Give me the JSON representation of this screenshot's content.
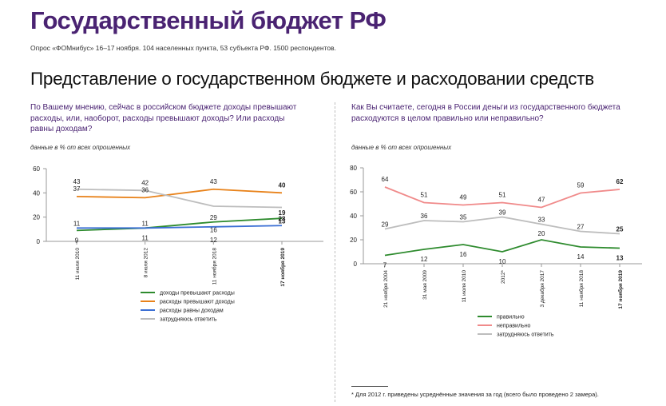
{
  "header": {
    "title": "Государственный бюджет РФ",
    "subtitle": "Опрос «ФОМнибус» 16–17 ноября. 104 населенных пункта, 53 субъекта РФ. 1500 респондентов.",
    "section_title": "Представление о государственном бюджете и расходовании средств"
  },
  "left": {
    "question": "По Вашему мнению, сейчас в российском бюджете доходы превышают расходы, или, наоборот, расходы превышают доходы? Или расходы равны доходам?",
    "note": "данные в % от всех опрошенных"
  },
  "right": {
    "question": "Как Вы считаете, сегодня в России деньги из государственного бюджета расходуются в целом правильно или неправильно?",
    "note": "данные в % от всех опрошенных"
  },
  "footnote": "*  Для 2012 г. приведены усреднённые значения за год (всего было проведено 2 замера).",
  "chart_data": [
    {
      "type": "line",
      "x": [
        "11 июля 2010",
        "8 июля 2012",
        "11 ноября 2018",
        "17 ноября 2019"
      ],
      "bold_last_x": true,
      "ylim": [
        0,
        60
      ],
      "yticks": [
        0,
        20,
        40,
        60
      ],
      "grid": false,
      "legend_position": "bottom",
      "series": [
        {
          "name": "доходы превышают расходы",
          "color": "#2e8b2e",
          "values": [
            9,
            11,
            16,
            19
          ]
        },
        {
          "name": "расходы превышают доходы",
          "color": "#e8821a",
          "values": [
            37,
            36,
            43,
            40
          ]
        },
        {
          "name": "расходы равны доходам",
          "color": "#3b6fd4",
          "values": [
            11,
            11,
            12,
            13
          ]
        },
        {
          "name": "затрудняюсь ответить",
          "color": "#bdbdbd",
          "values": [
            43,
            42,
            29,
            28
          ]
        }
      ]
    },
    {
      "type": "line",
      "x": [
        "21 ноября 2004",
        "31 мая 2009",
        "11 июля 2010",
        "2012*",
        "3 декабря 2017",
        "11 ноября 2018",
        "17 ноября 2019"
      ],
      "bold_last_x": true,
      "ylim": [
        0,
        80
      ],
      "yticks": [
        0,
        20,
        40,
        60,
        80
      ],
      "grid": false,
      "legend_position": "bottom",
      "series": [
        {
          "name": "правильно",
          "color": "#2e8b2e",
          "values": [
            7,
            12,
            16,
            10,
            20,
            14,
            13
          ]
        },
        {
          "name": "неправильно",
          "color": "#f08a8a",
          "values": [
            64,
            51,
            49,
            51,
            47,
            59,
            62
          ]
        },
        {
          "name": "затрудняюсь ответить",
          "color": "#bdbdbd",
          "values": [
            29,
            36,
            35,
            39,
            33,
            27,
            25
          ]
        }
      ]
    }
  ]
}
